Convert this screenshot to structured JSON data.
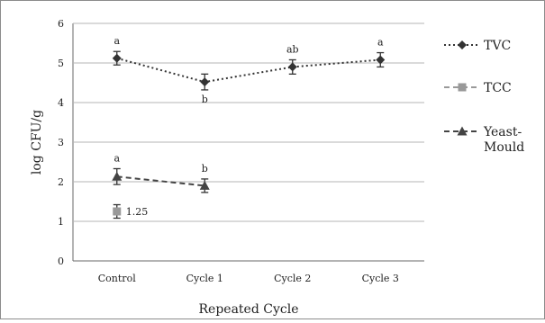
{
  "chart_data": {
    "type": "line",
    "title": "",
    "xlabel": "Repeated Cycle",
    "ylabel": "log CFU/g",
    "ylim": [
      0,
      6
    ],
    "y_ticks": [
      "0",
      "1",
      "2",
      "3",
      "4",
      "5",
      "6"
    ],
    "grid": "horizontal",
    "legend_position": "right",
    "categories": [
      "Control",
      "Cycle 1",
      "Cycle 2",
      "Cycle 3"
    ],
    "series": [
      {
        "name": "TVC",
        "marker": "diamond",
        "line": "dotted",
        "color": "#333333",
        "values": [
          5.12,
          4.52,
          4.9,
          5.08
        ],
        "errors": [
          0.17,
          0.2,
          0.18,
          0.18
        ],
        "significance": [
          "a",
          "b",
          "ab",
          "a"
        ],
        "significance_position": [
          "above",
          "below",
          "above",
          "above"
        ]
      },
      {
        "name": "TCC",
        "marker": "square",
        "line": "dashed",
        "color": "#999999",
        "values": [
          1.25,
          null,
          null,
          null
        ],
        "errors": [
          0.17,
          null,
          null,
          null
        ],
        "significance": [
          "",
          "",
          "",
          ""
        ],
        "significance_position": [
          "",
          "",
          "",
          ""
        ],
        "data_labels": [
          "1.25",
          "",
          "",
          ""
        ]
      },
      {
        "name": "Yeast-Mould",
        "legend_lines": [
          "Yeast-",
          "Mould"
        ],
        "marker": "triangle",
        "line": "dashed",
        "color": "#444444",
        "values": [
          2.13,
          1.9,
          null,
          null
        ],
        "errors": [
          0.2,
          0.17,
          null,
          null
        ],
        "significance": [
          "a",
          "b",
          "",
          ""
        ],
        "significance_position": [
          "above",
          "above",
          "",
          ""
        ]
      }
    ]
  }
}
